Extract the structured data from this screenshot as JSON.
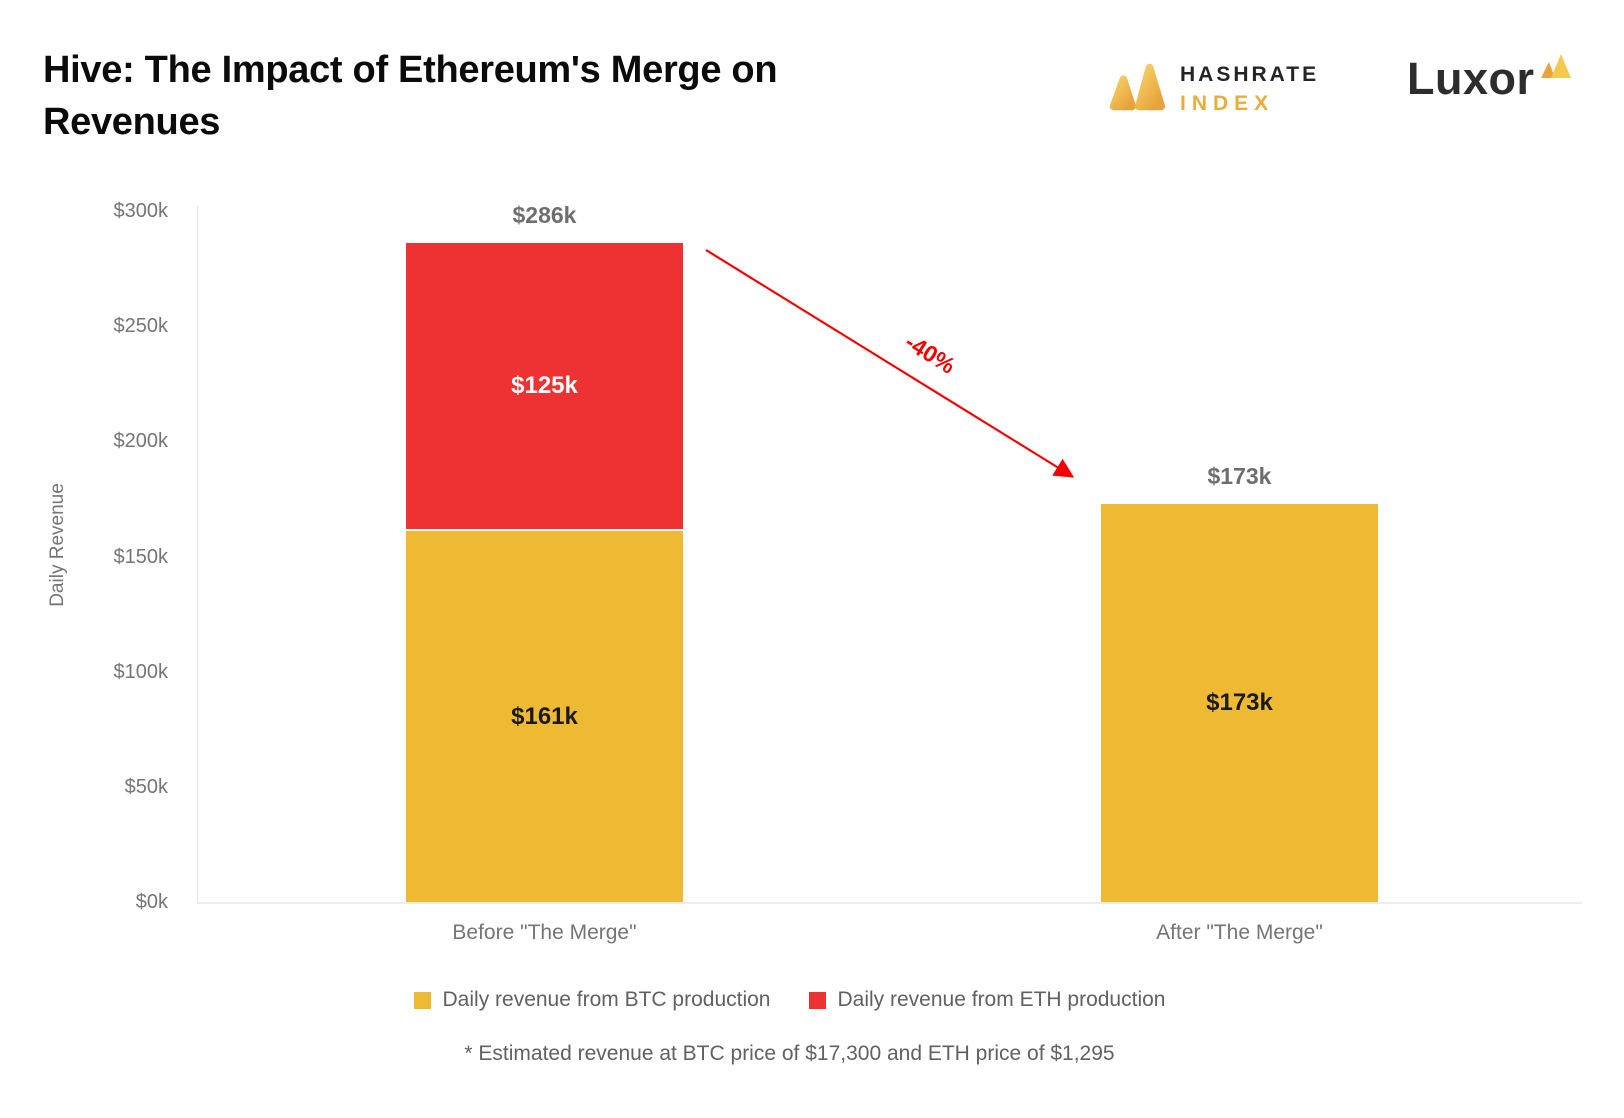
{
  "header": {
    "title": "Hive: The Impact of Ethereum's Merge on Revenues",
    "hashrate_logo": {
      "line1": "HASHRATE",
      "line2": "INDEX"
    },
    "luxor_logo": {
      "text": "Luxor"
    }
  },
  "colors": {
    "btc_yellow": "#EFBA33",
    "eth_red": "#EE3233",
    "arrow_red": "#F40000",
    "gray_label": "#6e6e6e",
    "axis_gray": "#757575"
  },
  "chart_data": {
    "type": "bar",
    "stacked": true,
    "grid": false,
    "legend_position": "bottom",
    "ylabel": "Daily Revenue",
    "ylim_k": [
      0,
      300
    ],
    "yticks": [
      {
        "value": 300,
        "label": "$300k"
      },
      {
        "value": 250,
        "label": "$250k"
      },
      {
        "value": 200,
        "label": "$200k"
      },
      {
        "value": 150,
        "label": "$150k"
      },
      {
        "value": 100,
        "label": "$100k"
      },
      {
        "value": 50,
        "label": "$50k"
      },
      {
        "value": 0,
        "label": "$0k"
      }
    ],
    "categories": [
      "Before \"The Merge\"",
      "After \"The Merge\""
    ],
    "series": [
      {
        "name": "Daily revenue from BTC production",
        "color": "#EFBA33",
        "values_k": [
          161,
          173
        ],
        "labels": [
          "$161k",
          "$173k"
        ],
        "label_color": "#1a1a1a"
      },
      {
        "name": "Daily revenue from ETH production",
        "color": "#EE3233",
        "values_k": [
          125,
          0
        ],
        "labels": [
          "$125k",
          ""
        ],
        "label_color": "#ffffff"
      }
    ],
    "totals": [
      {
        "value_k": 286,
        "label": "$286k"
      },
      {
        "value_k": 173,
        "label": "$173k"
      }
    ],
    "annotation": {
      "text": "-40%",
      "color": "#F40000"
    },
    "footnote": "* Estimated revenue at BTC price of $17,300 and ETH price of $1,295"
  }
}
